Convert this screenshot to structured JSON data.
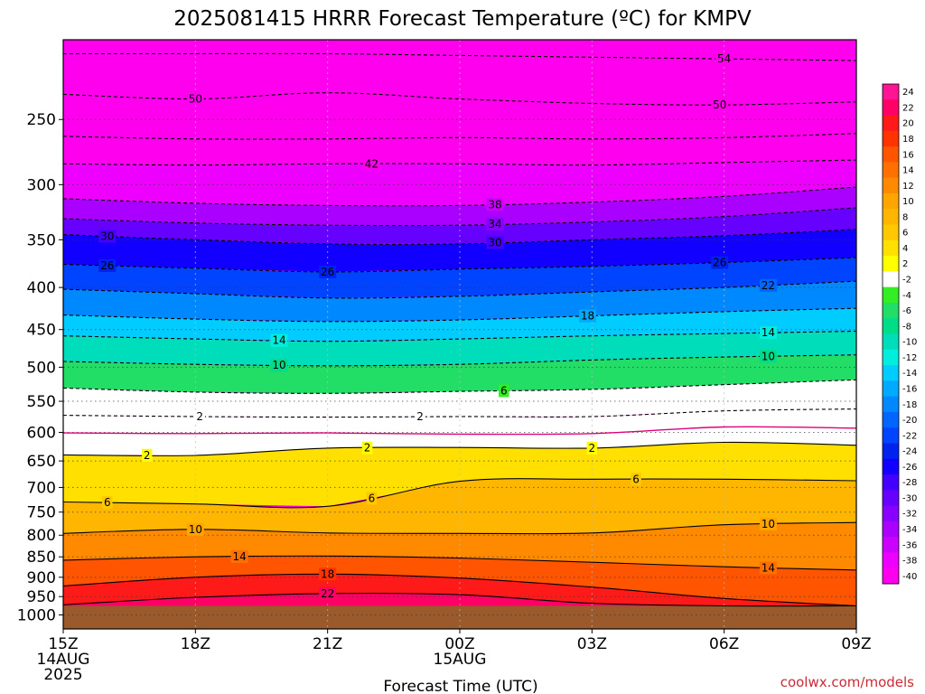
{
  "chart_data": {
    "type": "heatmap",
    "title": "2025081415 HRRR Forecast Temperature (ºC) for KMPV",
    "xlabel": "Forecast Time (UTC)",
    "credit": "coolwx.com/models",
    "x_ticks": [
      {
        "hour": 0,
        "lines": [
          "15Z",
          "14AUG",
          "2025"
        ]
      },
      {
        "hour": 3,
        "lines": [
          "18Z"
        ]
      },
      {
        "hour": 6,
        "lines": [
          "21Z"
        ]
      },
      {
        "hour": 9,
        "lines": [
          "00Z",
          "15AUG"
        ]
      },
      {
        "hour": 12,
        "lines": [
          "03Z"
        ]
      },
      {
        "hour": 15,
        "lines": [
          "06Z"
        ]
      },
      {
        "hour": 18,
        "lines": [
          "09Z"
        ]
      }
    ],
    "y_ticks": [
      250,
      300,
      350,
      400,
      450,
      500,
      550,
      600,
      650,
      700,
      750,
      800,
      850,
      900,
      950,
      1000
    ],
    "pressure_range": [
      200,
      1040
    ],
    "surface_pressure": 975,
    "colorbar": {
      "labels": [
        "24",
        "22",
        "20",
        "18",
        "16",
        "14",
        "12",
        "10",
        "8",
        "6",
        "4",
        "2",
        "-2",
        "-4",
        "-6",
        "-8",
        "-10",
        "-12",
        "-14",
        "-16",
        "-18",
        "-20",
        "-22",
        "-24",
        "-26",
        "-28",
        "-30",
        "-32",
        "-34",
        "-36",
        "-38",
        "-40"
      ],
      "colors": [
        "#ff1493",
        "#ff0066",
        "#ff1a1a",
        "#ff3300",
        "#ff5500",
        "#ff7000",
        "#ff8a00",
        "#ffa500",
        "#ffb600",
        "#ffc800",
        "#ffe000",
        "#ffff00",
        "#ffffff",
        "#33ee22",
        "#22dd66",
        "#00dd88",
        "#00ddbb",
        "#00eedd",
        "#00ccff",
        "#00aaff",
        "#0088ff",
        "#0066ff",
        "#0044ff",
        "#0022ee",
        "#1100ff",
        "#4400ff",
        "#6600ff",
        "#8800ff",
        "#aa00ff",
        "#cc00ff",
        "#ee00ff",
        "#ff00ee"
      ]
    },
    "isotherms": [
      {
        "temp": -54,
        "label": "54",
        "pressure": [
          208,
          208,
          208,
          209,
          210,
          211,
          212
        ],
        "label_hour": 15.0
      },
      {
        "temp": -50,
        "label": "50",
        "pressure": [
          233,
          236,
          232,
          236,
          239,
          240,
          238
        ],
        "label_hour": 3.0
      },
      {
        "temp": -50,
        "label": "50",
        "pressure": [
          233,
          236,
          232,
          236,
          239,
          240,
          238
        ],
        "label_hour": 14.9
      },
      {
        "temp": -46,
        "label": "",
        "pressure": [
          262,
          264,
          264,
          263,
          264,
          263,
          260
        ],
        "label_hour": null
      },
      {
        "temp": -42,
        "label": "42",
        "pressure": [
          283,
          284,
          283,
          283,
          284,
          282,
          280
        ],
        "label_hour": 7.0
      },
      {
        "temp": -38,
        "label": "38",
        "pressure": [
          312,
          316,
          318,
          318,
          315,
          310,
          302
        ],
        "label_hour": 9.8
      },
      {
        "temp": -34,
        "label": "34",
        "pressure": [
          330,
          334,
          336,
          336,
          333,
          328,
          320
        ],
        "label_hour": 9.8
      },
      {
        "temp": -30,
        "label": "30",
        "pressure": [
          345,
          350,
          354,
          354,
          350,
          346,
          340
        ],
        "label_hour": 1.0
      },
      {
        "temp": -30,
        "label": "30",
        "pressure": [
          345,
          350,
          354,
          354,
          350,
          346,
          340
        ],
        "label_hour": 9.8
      },
      {
        "temp": -26,
        "label": "26",
        "pressure": [
          375,
          379,
          383,
          380,
          377,
          373,
          368
        ],
        "label_hour": 1.0
      },
      {
        "temp": -26,
        "label": "26",
        "pressure": [
          375,
          379,
          383,
          380,
          377,
          373,
          368
        ],
        "label_hour": 6.0
      },
      {
        "temp": -26,
        "label": "26",
        "pressure": [
          375,
          379,
          383,
          380,
          377,
          373,
          368
        ],
        "label_hour": 14.9
      },
      {
        "temp": -22,
        "label": "22",
        "pressure": [
          402,
          407,
          412,
          410,
          405,
          400,
          393
        ],
        "label_hour": 16.0
      },
      {
        "temp": -18,
        "label": "18",
        "pressure": [
          432,
          437,
          440,
          438,
          433,
          428,
          424
        ],
        "label_hour": 11.9
      },
      {
        "temp": -14,
        "label": "14",
        "pressure": [
          458,
          462,
          465,
          462,
          458,
          455,
          452
        ],
        "label_hour": 4.9
      },
      {
        "temp": -14,
        "label": "14",
        "pressure": [
          458,
          462,
          465,
          462,
          458,
          455,
          452
        ],
        "label_hour": 16.0
      },
      {
        "temp": -10,
        "label": "10",
        "pressure": [
          492,
          496,
          498,
          496,
          490,
          486,
          483
        ],
        "label_hour": 4.9
      },
      {
        "temp": -10,
        "label": "10",
        "pressure": [
          492,
          496,
          498,
          496,
          490,
          486,
          483
        ],
        "label_hour": 16.0
      },
      {
        "temp": -6,
        "label": "6",
        "pressure": [
          530,
          536,
          538,
          535,
          532,
          525,
          518
        ],
        "label_hour": 10.0
      },
      {
        "temp": -2,
        "label": "2",
        "pressure": [
          572,
          574,
          575,
          574,
          574,
          565,
          562
        ],
        "label_hour": 3.1
      },
      {
        "temp": -2,
        "label": "2",
        "pressure": [
          572,
          574,
          575,
          574,
          574,
          565,
          562
        ],
        "label_hour": 8.1
      },
      {
        "temp": 0,
        "label": "",
        "pressure": [
          601,
          602,
          601,
          603,
          602,
          591,
          593
        ],
        "label_hour": null
      },
      {
        "temp": 2,
        "label": "2",
        "pressure": [
          639,
          640,
          627,
          626,
          627,
          617,
          622
        ],
        "label_hour": 1.9
      },
      {
        "temp": 2,
        "label": "2",
        "pressure": [
          639,
          640,
          627,
          626,
          627,
          617,
          622
        ],
        "label_hour": 6.9
      },
      {
        "temp": 2,
        "label": "2",
        "pressure": [
          639,
          640,
          627,
          626,
          627,
          617,
          622
        ],
        "label_hour": 12.0
      },
      {
        "temp": 6,
        "label": "6",
        "pressure": [
          729,
          733,
          738,
          688,
          684,
          684,
          687
        ],
        "label_hour": 1.0
      },
      {
        "temp": 6,
        "label": "6",
        "pressure": [
          729,
          733,
          738,
          688,
          684,
          684,
          687
        ],
        "label_hour": 7.0
      },
      {
        "temp": 6,
        "label": "6",
        "pressure": [
          729,
          733,
          738,
          688,
          684,
          684,
          687
        ],
        "label_hour": 13.0
      },
      {
        "temp": 10,
        "label": "10",
        "pressure": [
          796,
          787,
          795,
          796,
          795,
          777,
          772
        ],
        "label_hour": 3.0
      },
      {
        "temp": 10,
        "label": "10",
        "pressure": [
          796,
          787,
          795,
          796,
          795,
          777,
          772
        ],
        "label_hour": 16.0
      },
      {
        "temp": 14,
        "label": "14",
        "pressure": [
          858,
          850,
          848,
          853,
          863,
          874,
          882
        ],
        "label_hour": 4.0
      },
      {
        "temp": 14,
        "label": "14",
        "pressure": [
          858,
          850,
          848,
          853,
          863,
          874,
          882
        ],
        "label_hour": 16.0
      },
      {
        "temp": 18,
        "label": "18",
        "pressure": [
          922,
          900,
          892,
          902,
          925,
          955,
          975
        ],
        "label_hour": 6.0
      },
      {
        "temp": 22,
        "label": "22",
        "pressure": [
          972,
          952,
          942,
          945,
          968,
          975,
          975
        ],
        "label_hour": 6.0
      }
    ]
  }
}
